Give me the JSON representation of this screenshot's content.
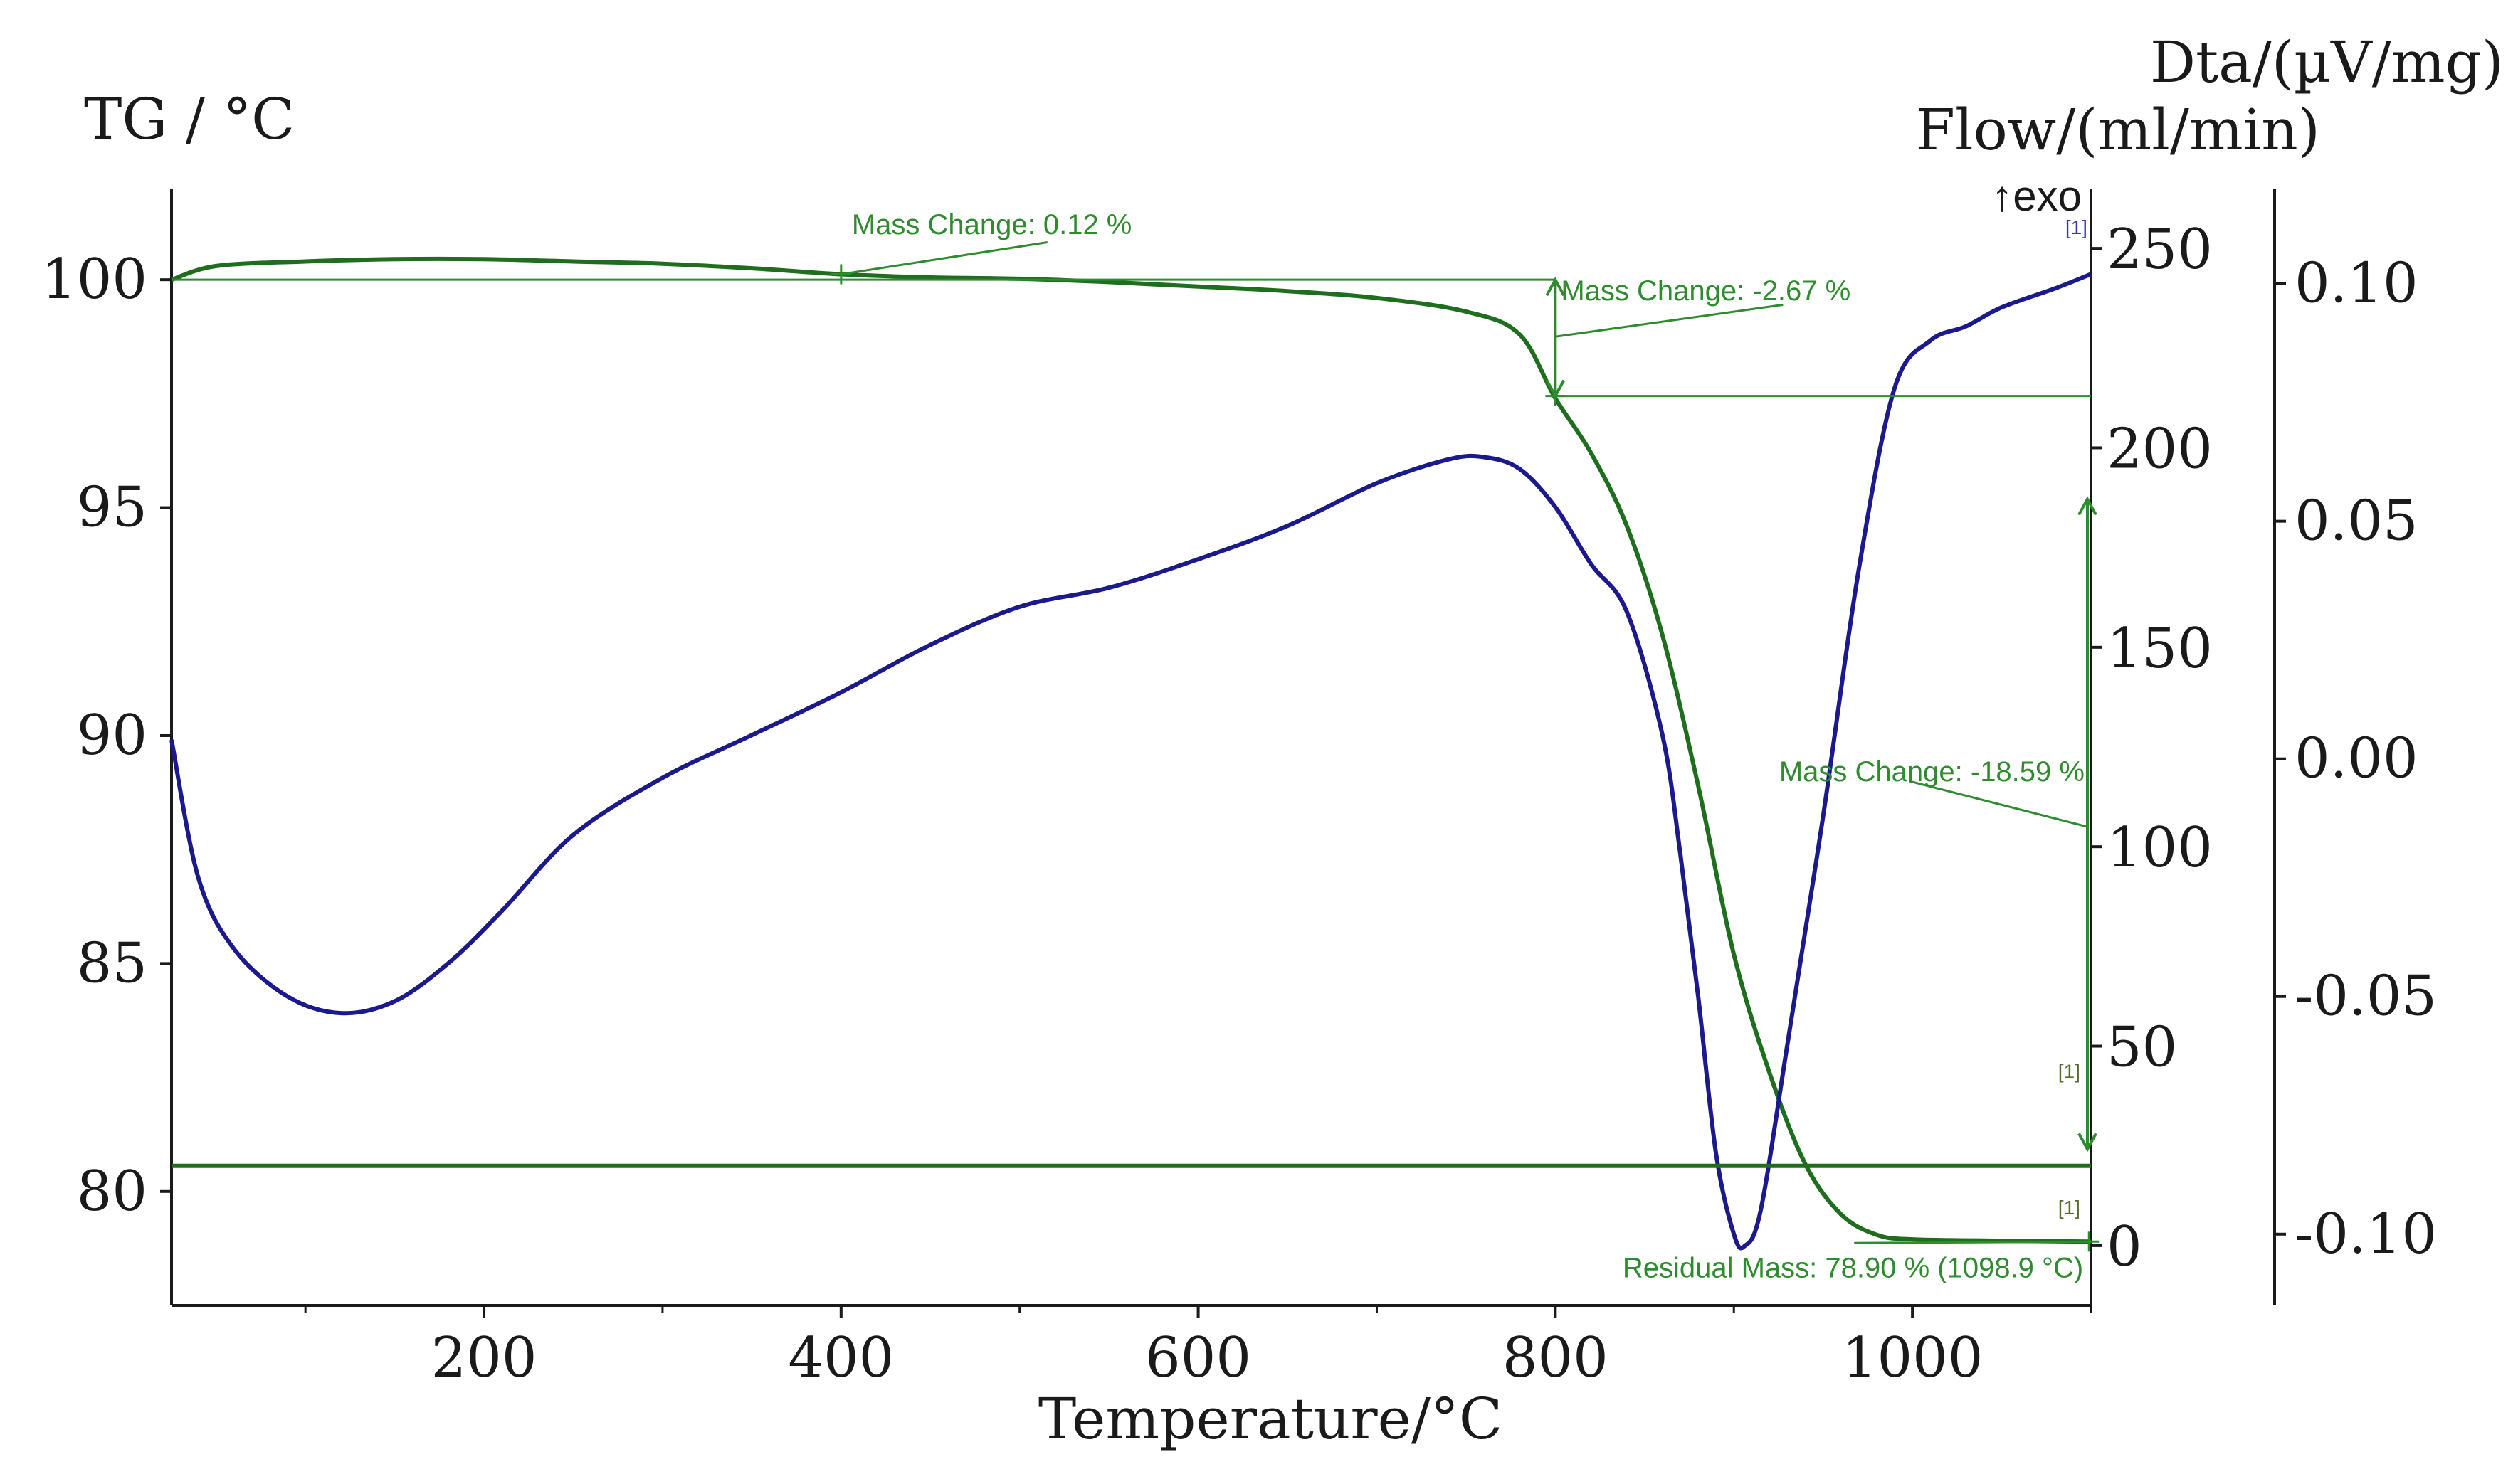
{
  "chart_data": {
    "type": "line",
    "xlabel": "Temperature/°C",
    "ylabel_left": "TG / °C",
    "ylabel_right_flow": "Flow/(ml/min)",
    "ylabel_right_dta": "Dta/(µV/mg)",
    "exo_label": "↑exo",
    "xlim": [
      25,
      1100
    ],
    "x_ticks": [
      "200",
      "400",
      "600",
      "800",
      "1000"
    ],
    "tg_ylim": [
      77.5,
      102
    ],
    "tg_ticks": [
      "80",
      "85",
      "90",
      "95",
      "100"
    ],
    "flow_ylim": [
      -15,
      265
    ],
    "flow_ticks": [
      "0",
      "50",
      "100",
      "150",
      "200",
      "250"
    ],
    "dta_ylim": [
      -0.115,
      0.12
    ],
    "dta_ticks": [
      "-0.10",
      "-0.05",
      "0.00",
      "0.05",
      "0.10"
    ],
    "colors": {
      "tg": "#1e6e1e",
      "dta": "#1a1a8c",
      "flow": "#1e6e1e",
      "annotation": "#2e8b2e",
      "axis": "#1a1a1a"
    },
    "series": [
      {
        "name": "TG",
        "axis": "tg",
        "x": [
          25,
          50,
          100,
          150,
          200,
          250,
          300,
          350,
          400,
          450,
          500,
          550,
          600,
          650,
          700,
          750,
          780,
          800,
          820,
          840,
          860,
          880,
          900,
          920,
          940,
          960,
          980,
          1000,
          1050,
          1100
        ],
        "y": [
          100,
          100.3,
          100.4,
          100.45,
          100.45,
          100.4,
          100.35,
          100.25,
          100.12,
          100.05,
          100.02,
          99.95,
          99.85,
          99.75,
          99.6,
          99.3,
          98.8,
          97.4,
          96.2,
          94.6,
          92.2,
          88.9,
          85.2,
          82.6,
          80.6,
          79.5,
          79.05,
          78.95,
          78.92,
          78.9
        ]
      },
      {
        "name": "DTA",
        "axis": "dta",
        "x": [
          25,
          40,
          60,
          90,
          120,
          150,
          180,
          210,
          250,
          300,
          350,
          400,
          450,
          500,
          550,
          600,
          650,
          700,
          740,
          760,
          780,
          800,
          820,
          840,
          860,
          870,
          880,
          890,
          900,
          906,
          915,
          930,
          950,
          970,
          990,
          1010,
          1030,
          1050,
          1080,
          1100
        ],
        "y": [
          0.004,
          -0.025,
          -0.04,
          -0.05,
          -0.0535,
          -0.051,
          -0.043,
          -0.032,
          -0.016,
          -0.004,
          0.005,
          0.014,
          0.024,
          0.032,
          0.036,
          0.042,
          0.049,
          0.058,
          0.063,
          0.0635,
          0.061,
          0.053,
          0.041,
          0.031,
          0.005,
          -0.02,
          -0.05,
          -0.083,
          -0.1,
          -0.1025,
          -0.095,
          -0.06,
          -0.012,
          0.04,
          0.078,
          0.088,
          0.091,
          0.095,
          0.099,
          0.102
        ]
      },
      {
        "name": "Flow",
        "axis": "flow",
        "x": [
          25,
          1100
        ],
        "y": [
          20,
          20
        ]
      }
    ],
    "annotations": [
      {
        "text": "Mass Change: 0.12 %",
        "x": 400,
        "tg": 100.12
      },
      {
        "text": "Mass Change: -2.67 %",
        "x": 800,
        "tg_from": 100.0,
        "tg_to": 97.45
      },
      {
        "text": "Mass Change: -18.59 %",
        "x": 1098,
        "tg_from": 97.45,
        "tg_to": 78.9
      },
      {
        "text": "Residual Mass: 78.90 % (1098.9 °C)",
        "x": 1098.9,
        "tg": 78.9
      }
    ],
    "curve_refs": [
      "[1]",
      "[1]",
      "[1]"
    ]
  }
}
